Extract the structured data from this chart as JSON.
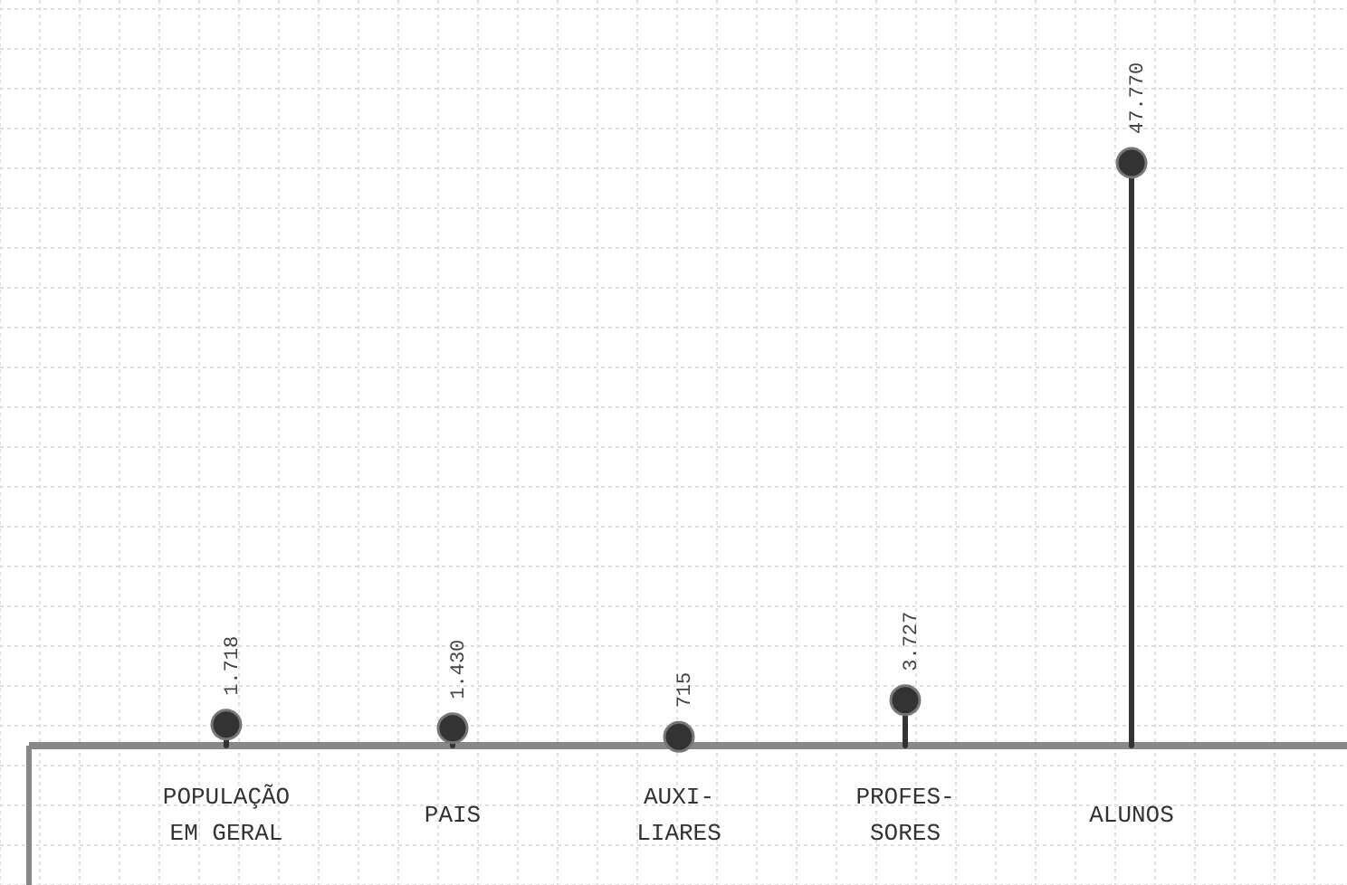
{
  "chart_data": {
    "type": "lollipop",
    "categories": [
      "POPULAÇÃO EM GERAL",
      "PAIS",
      "AUXI-LIARES",
      "PROFES-SORES",
      "ALUNOS"
    ],
    "values": [
      1718,
      1430,
      715,
      3727,
      47770
    ],
    "value_labels": [
      "1.718",
      "1.430",
      "715",
      "3.727",
      "47.770"
    ],
    "color": "#333333",
    "marker": "circle",
    "grid": true
  }
}
